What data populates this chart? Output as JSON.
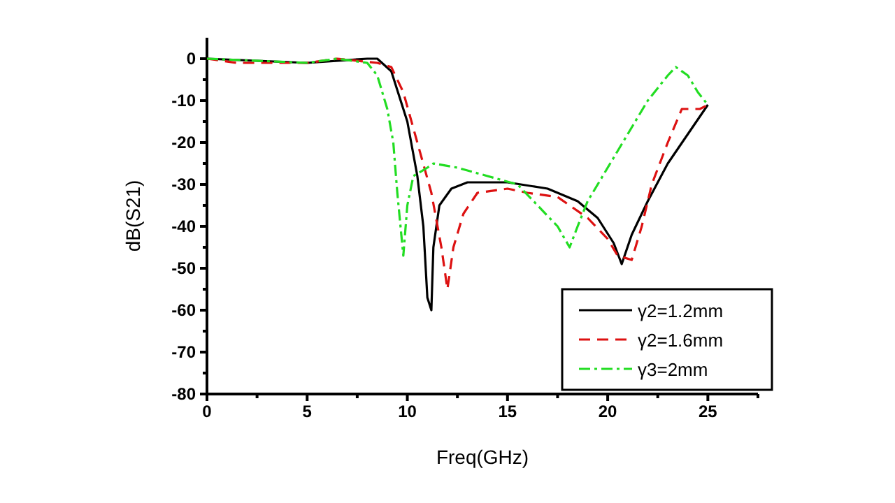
{
  "chart_data": {
    "type": "line",
    "xlabel": "Freq(GHz)",
    "ylabel": "dB(S21)",
    "xlim": [
      0,
      27.5
    ],
    "xticks": [
      0,
      {
        "value": 2.5,
        "label": null
      },
      5,
      {
        "value": 7.5,
        "label": null
      },
      10,
      {
        "value": 12.5,
        "label": null
      },
      15,
      {
        "value": 17.5,
        "label": null
      },
      20,
      {
        "value": 22.5,
        "label": null
      },
      25,
      {
        "value": 27.5,
        "label": null
      }
    ],
    "ylim": [
      -80,
      5
    ],
    "yticks": [
      0,
      {
        "value": -5,
        "label": null
      },
      -10,
      {
        "value": -15,
        "label": null
      },
      -20,
      {
        "value": -25,
        "label": null
      },
      -30,
      {
        "value": -35,
        "label": null
      },
      -40,
      {
        "value": -45,
        "label": null
      },
      -50,
      {
        "value": -55,
        "label": null
      },
      -60,
      {
        "value": -65,
        "label": null
      },
      -70,
      {
        "value": -75,
        "label": null
      },
      -80
    ],
    "legend": "bottom right",
    "grid": false,
    "series": [
      {
        "name": "γ2=1.2mm",
        "color": "#000000",
        "line_style": "solid",
        "x": [
          0,
          5,
          8,
          8.5,
          9.2,
          10,
          10.5,
          10.8,
          11,
          11.2,
          11.3,
          11.6,
          12.2,
          13,
          15,
          17,
          18.5,
          19.5,
          20.3,
          20.7,
          21.2,
          22,
          23,
          24,
          25
        ],
        "values": [
          0,
          -1,
          0,
          0,
          -3,
          -15,
          -28,
          -40,
          -57,
          -60,
          -45,
          -35,
          -31,
          -29.5,
          -29.5,
          -31,
          -34,
          -38,
          -44,
          -49,
          -42,
          -34,
          -25,
          -18,
          -11
        ]
      },
      {
        "name": "γ2=1.6mm",
        "color": "#dd1111",
        "line_style": "dashed",
        "x": [
          0,
          1.5,
          5,
          6.5,
          8.5,
          9.2,
          9.8,
          10.5,
          11.2,
          11.7,
          12,
          12.3,
          12.8,
          13.5,
          15,
          16,
          17.5,
          19,
          20,
          20.5,
          21.2,
          21.7,
          22.2,
          23,
          23.7,
          24.6,
          25
        ],
        "values": [
          0,
          -1,
          -1,
          0,
          -1,
          -2,
          -8,
          -20,
          -32,
          -45,
          -55,
          -45,
          -37,
          -32,
          -31,
          -32,
          -33,
          -38,
          -43,
          -47,
          -48,
          -40,
          -30,
          -20,
          -12,
          -12,
          -11
        ]
      },
      {
        "name": "γ3=2mm",
        "color": "#22dd22",
        "line_style": "dashdot",
        "x": [
          0,
          5,
          6.5,
          8,
          8.5,
          9,
          9.3,
          9.5,
          9.7,
          9.8,
          10,
          10.3,
          11,
          11.3,
          12.5,
          14,
          15.5,
          16.5,
          17.5,
          18.1,
          18.5,
          19,
          20,
          21,
          22,
          23,
          23.4,
          24,
          24.5,
          25
        ],
        "values": [
          0,
          -1,
          0,
          -1,
          -4,
          -12,
          -20,
          -32,
          -42,
          -47,
          -35,
          -28,
          -26,
          -25,
          -26,
          -28,
          -30,
          -35,
          -40,
          -45,
          -40,
          -34,
          -26,
          -18,
          -10,
          -4,
          -2,
          -4,
          -8,
          -11
        ]
      }
    ]
  }
}
